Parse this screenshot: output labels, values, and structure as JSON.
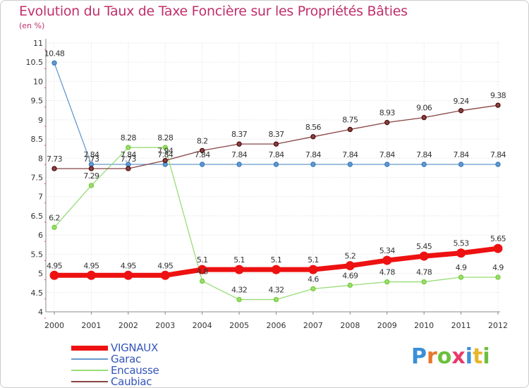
{
  "title": "Evolution du Taux de Taxe Foncière sur les Propriétés Bâties",
  "subtitle": "(en %)",
  "logo": {
    "text": "Proxiti",
    "letters": [
      "P",
      "r",
      "o",
      "x",
      "i",
      "t",
      "i"
    ],
    "colors": [
      "#3a8fd8",
      "#e8762b",
      "#6cbf3c",
      "#e83a6a",
      "#3a8fd8",
      "#e8b62b",
      "#6cbf3c"
    ]
  },
  "chart_data": {
    "type": "line",
    "title": "Evolution du Taux de Taxe Foncière sur les Propriétés Bâties",
    "ylabel": "(en %)",
    "xlabel": "",
    "ylim": [
      4,
      11
    ],
    "ytick_labels": [
      "4",
      "4.5",
      "5",
      "5.5",
      "6",
      "6.5",
      "7",
      "7.5",
      "8",
      "8.5",
      "9",
      "9.5",
      "10",
      "10.5",
      "11"
    ],
    "x": [
      "2000",
      "2001",
      "2002",
      "2003",
      "2004",
      "2005",
      "2006",
      "2007",
      "2008",
      "2009",
      "2010",
      "2011",
      "2012"
    ],
    "series": [
      {
        "name": "VIGNAUX",
        "color": "#ee1111",
        "values": [
          4.95,
          4.95,
          4.95,
          4.95,
          5.1,
          5.1,
          5.1,
          5.1,
          5.2,
          5.34,
          5.45,
          5.53,
          5.65
        ],
        "labels": [
          "4.95",
          "4.95",
          "4.95",
          "4.95",
          "5.1",
          "5.1",
          "5.1",
          "5.1",
          "5.2",
          "5.34",
          "5.45",
          "5.53",
          "5.65"
        ]
      },
      {
        "name": "Garac",
        "color": "#6699cc",
        "marker": "#3a7fc1",
        "values": [
          10.48,
          7.84,
          7.84,
          7.84,
          7.84,
          7.84,
          7.84,
          7.84,
          7.84,
          7.84,
          7.84,
          7.84,
          7.84
        ],
        "labels": [
          "10.48",
          "7.84",
          "7.84",
          "7.84",
          "7.84",
          "7.84",
          "7.84",
          "7.84",
          "7.84",
          "7.84",
          "7.84",
          "7.84",
          "7.84"
        ]
      },
      {
        "name": "Encausse",
        "color": "#99dd77",
        "marker": "#7acc3a",
        "values": [
          6.2,
          7.29,
          8.28,
          8.28,
          4.8,
          4.32,
          4.32,
          4.6,
          4.69,
          4.78,
          4.78,
          4.9,
          4.9
        ],
        "labels": [
          "6.2",
          "7.29",
          "8.28",
          "8.28",
          "4.8",
          "4.32",
          "4.32",
          "4.6",
          "4.69",
          "4.78",
          "4.78",
          "4.9",
          "4.9"
        ]
      },
      {
        "name": "Caubiac",
        "color": "#884444",
        "marker": "#551111",
        "values": [
          7.73,
          7.73,
          7.73,
          7.94,
          8.2,
          8.37,
          8.37,
          8.56,
          8.75,
          8.93,
          9.06,
          9.24,
          9.38
        ],
        "labels": [
          "7.73",
          "7.73",
          "7.73",
          "7.94",
          "8.2",
          "8.37",
          "8.37",
          "8.56",
          "8.75",
          "8.93",
          "9.06",
          "9.24",
          "9.38"
        ]
      }
    ],
    "legend": [
      "VIGNAUX",
      "Garac",
      "Encausse",
      "Caubiac"
    ],
    "legend_position": "bottom-left",
    "grid": true
  }
}
